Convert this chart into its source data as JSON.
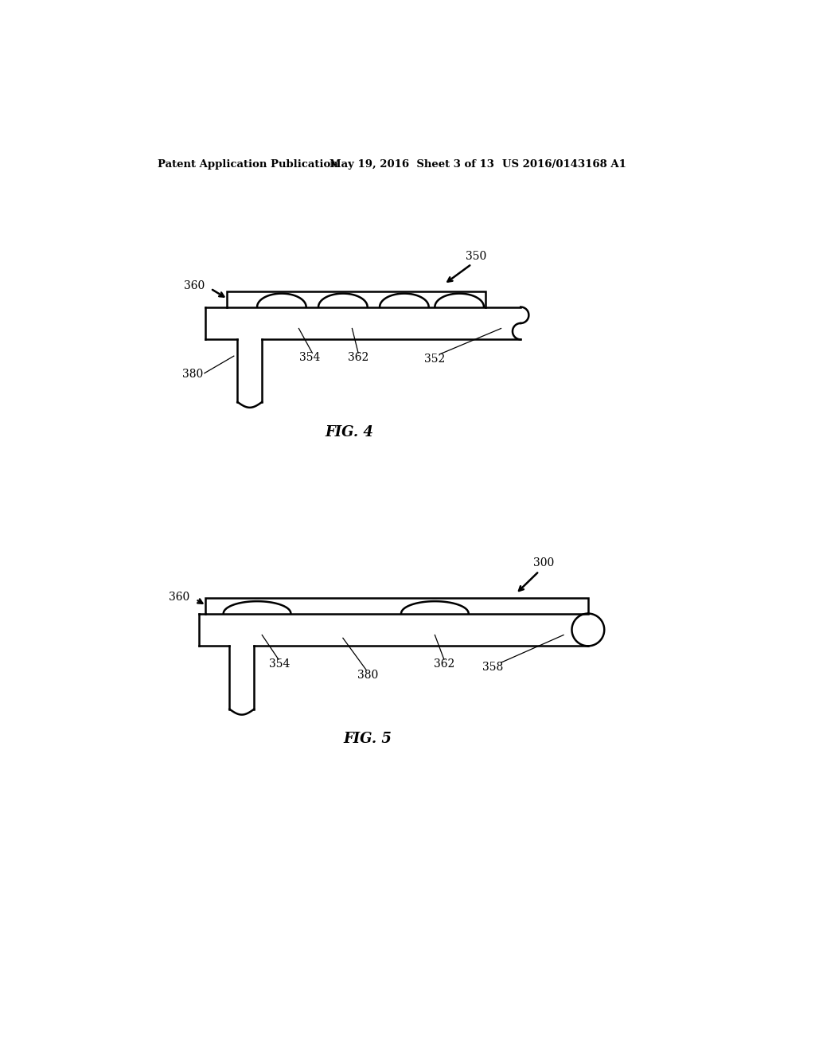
{
  "bg_color": "#ffffff",
  "line_color": "#000000",
  "header_text": "Patent Application Publication",
  "header_date": "May 19, 2016  Sheet 3 of 13",
  "header_patent": "US 2016/0143168 A1",
  "fig4_label": "FIG. 4",
  "fig5_label": "FIG. 5",
  "fig4_ref_350": "350",
  "fig4_ref_360": "360",
  "fig4_ref_354": "354",
  "fig4_ref_362": "362",
  "fig4_ref_352": "352",
  "fig4_ref_380": "380",
  "fig5_ref_300": "300",
  "fig5_ref_360": "360",
  "fig5_ref_354": "354",
  "fig5_ref_362": "362",
  "fig5_ref_358": "358",
  "fig5_ref_380": "380"
}
